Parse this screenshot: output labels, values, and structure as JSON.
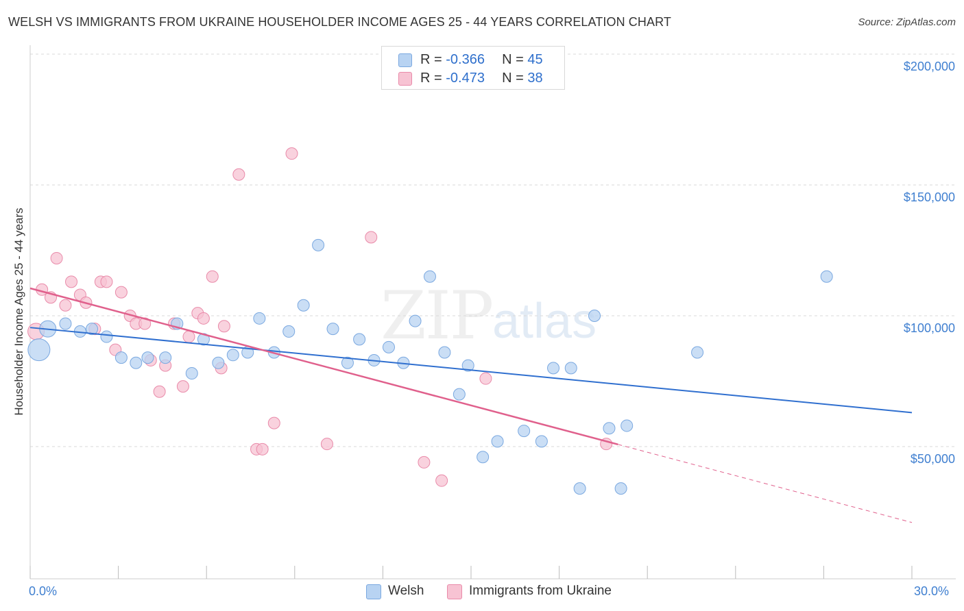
{
  "title": "WELSH VS IMMIGRANTS FROM UKRAINE HOUSEHOLDER INCOME AGES 25 - 44 YEARS CORRELATION CHART",
  "source": "Source: ZipAtlas.com",
  "watermark": {
    "zip": "ZIP",
    "atlas": "atlas"
  },
  "legend": {
    "welsh": {
      "r_label": "R = ",
      "r_value": "-0.366",
      "n_label": "N = ",
      "n_value": "45"
    },
    "ukraine": {
      "r_label": "R = ",
      "r_value": "-0.473",
      "n_label": "N = ",
      "n_value": "38"
    }
  },
  "bottom_legend": {
    "welsh": "Welsh",
    "ukraine": "Immigrants from Ukraine"
  },
  "colors": {
    "welsh_fill": "#b8d3f2",
    "welsh_stroke": "#7aa8e0",
    "welsh_line": "#2f6fcf",
    "ukraine_fill": "#f7c3d3",
    "ukraine_stroke": "#e98aa9",
    "ukraine_line": "#e0608c",
    "grid": "#d9d9d9",
    "axis_label": "#3f7fd0"
  },
  "chart_data": {
    "type": "scatter",
    "title": "WELSH VS IMMIGRANTS FROM UKRAINE HOUSEHOLDER INCOME AGES 25 - 44 YEARS CORRELATION CHART",
    "xlabel": "",
    "ylabel": "Householder Income Ages 25 - 44 years",
    "xlim": [
      0,
      30
    ],
    "ylim": [
      0,
      205000
    ],
    "x_tick_labels": [
      "0.0%",
      "30.0%"
    ],
    "y_ticks": [
      50000,
      100000,
      150000,
      200000
    ],
    "y_tick_labels": [
      "$50,000",
      "$100,000",
      "$150,000",
      "$200,000"
    ],
    "grid": true,
    "legend_position": "top-center",
    "series": [
      {
        "name": "Welsh",
        "points": [
          [
            0.3,
            87000,
            3
          ],
          [
            0.6,
            95000,
            2
          ],
          [
            1.2,
            97000,
            1
          ],
          [
            1.7,
            94000,
            1
          ],
          [
            2.1,
            95000,
            1
          ],
          [
            2.6,
            92000,
            1
          ],
          [
            3.1,
            84000,
            1
          ],
          [
            3.6,
            82000,
            1
          ],
          [
            4.0,
            84000,
            1
          ],
          [
            4.6,
            84000,
            1
          ],
          [
            5.0,
            97000,
            1
          ],
          [
            5.5,
            78000,
            1
          ],
          [
            5.9,
            91000,
            1
          ],
          [
            6.4,
            82000,
            1
          ],
          [
            6.9,
            85000,
            1
          ],
          [
            7.4,
            86000,
            1
          ],
          [
            7.8,
            99000,
            1
          ],
          [
            8.3,
            86000,
            1
          ],
          [
            8.8,
            94000,
            1
          ],
          [
            9.3,
            104000,
            1
          ],
          [
            9.8,
            127000,
            1
          ],
          [
            10.3,
            95000,
            1
          ],
          [
            10.8,
            82000,
            1
          ],
          [
            11.2,
            91000,
            1
          ],
          [
            11.7,
            83000,
            1
          ],
          [
            12.2,
            88000,
            1
          ],
          [
            12.7,
            82000,
            1
          ],
          [
            13.1,
            98000,
            1
          ],
          [
            13.6,
            115000,
            1
          ],
          [
            14.1,
            86000,
            1
          ],
          [
            14.6,
            70000,
            1
          ],
          [
            14.9,
            81000,
            1
          ],
          [
            15.4,
            46000,
            1
          ],
          [
            15.9,
            52000,
            1
          ],
          [
            16.8,
            56000,
            1
          ],
          [
            17.4,
            52000,
            1
          ],
          [
            17.8,
            80000,
            1
          ],
          [
            18.4,
            80000,
            1
          ],
          [
            18.7,
            34000,
            1
          ],
          [
            19.2,
            100000,
            1
          ],
          [
            19.7,
            57000,
            1
          ],
          [
            20.1,
            34000,
            1
          ],
          [
            20.3,
            58000,
            1
          ],
          [
            22.7,
            86000,
            1
          ],
          [
            27.1,
            115000,
            1
          ]
        ]
      },
      {
        "name": "Immigrants from Ukraine",
        "points": [
          [
            0.2,
            94000,
            2
          ],
          [
            0.4,
            110000,
            1
          ],
          [
            0.7,
            107000,
            1
          ],
          [
            0.9,
            122000,
            1
          ],
          [
            1.2,
            104000,
            1
          ],
          [
            1.4,
            113000,
            1
          ],
          [
            1.7,
            108000,
            1
          ],
          [
            1.9,
            105000,
            1
          ],
          [
            2.2,
            95000,
            1
          ],
          [
            2.4,
            113000,
            1
          ],
          [
            2.6,
            113000,
            1
          ],
          [
            2.9,
            87000,
            1
          ],
          [
            3.1,
            109000,
            1
          ],
          [
            3.4,
            100000,
            1
          ],
          [
            3.6,
            97000,
            1
          ],
          [
            3.9,
            97000,
            1
          ],
          [
            4.1,
            83000,
            1
          ],
          [
            4.4,
            71000,
            1
          ],
          [
            4.6,
            81000,
            1
          ],
          [
            4.9,
            97000,
            1
          ],
          [
            5.2,
            73000,
            1
          ],
          [
            5.4,
            92000,
            1
          ],
          [
            5.7,
            101000,
            1
          ],
          [
            5.9,
            99000,
            1
          ],
          [
            6.2,
            115000,
            1
          ],
          [
            6.5,
            80000,
            1
          ],
          [
            6.6,
            96000,
            1
          ],
          [
            7.1,
            154000,
            1
          ],
          [
            7.7,
            49000,
            1
          ],
          [
            7.9,
            49000,
            1
          ],
          [
            8.3,
            59000,
            1
          ],
          [
            8.9,
            162000,
            1
          ],
          [
            10.1,
            51000,
            1
          ],
          [
            11.6,
            130000,
            1
          ],
          [
            13.4,
            44000,
            1
          ],
          [
            14.0,
            37000,
            1
          ],
          [
            15.5,
            76000,
            1
          ],
          [
            19.6,
            51000,
            1
          ]
        ]
      }
    ],
    "trend_lines": [
      {
        "series": "Welsh",
        "x_start": 0.0,
        "y_start": 95500,
        "x_end": 30.0,
        "y_end": 63000,
        "dashed_from_x": null
      },
      {
        "series": "Immigrants from Ukraine",
        "x_start": 0.0,
        "y_start": 110500,
        "x_end": 30.0,
        "y_end": 21000,
        "dashed_from_x": 20.0
      }
    ]
  }
}
